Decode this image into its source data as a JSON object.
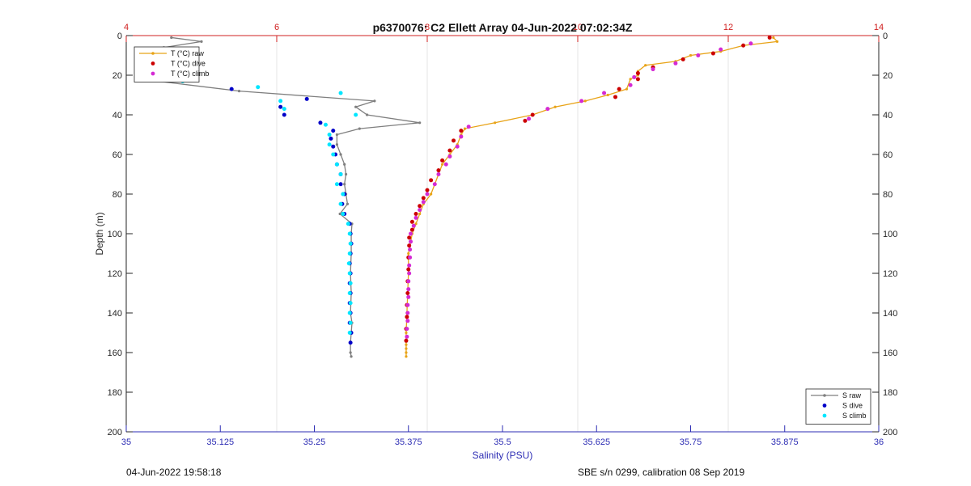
{
  "chart_data": {
    "type": "scatter",
    "title": "p6370076: C2 Ellett Array 04-Jun-2022 07:02:34Z",
    "xlabel": "Salinity (PSU)",
    "ylabel": "Depth (m)",
    "x_bottom": {
      "range": [
        35,
        36
      ],
      "ticks": [
        "35",
        "35.125",
        "35.25",
        "35.375",
        "35.5",
        "35.625",
        "35.75",
        "35.875",
        "36"
      ],
      "color": "#2d2db4"
    },
    "x_top": {
      "range": [
        4,
        14
      ],
      "ticks": [
        "4",
        "6",
        "8",
        "10",
        "12",
        "14"
      ],
      "color": "#d02020"
    },
    "y": {
      "range": [
        0,
        200
      ],
      "reversed": true,
      "ticks": [
        "0",
        "20",
        "40",
        "60",
        "80",
        "100",
        "120",
        "140",
        "160",
        "180",
        "200"
      ]
    },
    "grid": true,
    "legends": [
      {
        "placement": "top-left",
        "entries": [
          {
            "label": "T (°C) raw",
            "color": "#e8a317",
            "style": "line-marker"
          },
          {
            "label": "T (°C) dive",
            "color": "#cc0000",
            "style": "dot"
          },
          {
            "label": "T (°C) climb",
            "color": "#d42ad4",
            "style": "dot"
          }
        ]
      },
      {
        "placement": "bottom-right",
        "entries": [
          {
            "label": "S raw",
            "color": "#7f7f7f",
            "style": "line-marker"
          },
          {
            "label": "S dive",
            "color": "#0000c8",
            "style": "dot"
          },
          {
            "label": "S climb",
            "color": "#00e6ff",
            "style": "dot"
          }
        ]
      }
    ],
    "series": [
      {
        "name": "S raw",
        "axis": "salinity",
        "color": "#7f7f7f",
        "points": [
          [
            35.06,
            1
          ],
          [
            35.1,
            3
          ],
          [
            35.05,
            6
          ],
          [
            35.04,
            9
          ],
          [
            35.03,
            12
          ],
          [
            35.02,
            14
          ],
          [
            35.04,
            16
          ],
          [
            35.08,
            18
          ],
          [
            35.06,
            20
          ],
          [
            35.02,
            22
          ],
          [
            35.15,
            28
          ],
          [
            35.33,
            33
          ],
          [
            35.305,
            36
          ],
          [
            35.32,
            40
          ],
          [
            35.39,
            44
          ],
          [
            35.31,
            47
          ],
          [
            35.28,
            50
          ],
          [
            35.28,
            55
          ],
          [
            35.285,
            60
          ],
          [
            35.29,
            65
          ],
          [
            35.292,
            70
          ],
          [
            35.29,
            75
          ],
          [
            35.292,
            80
          ],
          [
            35.294,
            85
          ],
          [
            35.284,
            90
          ],
          [
            35.3,
            95
          ],
          [
            35.299,
            100
          ],
          [
            35.299,
            110
          ],
          [
            35.298,
            120
          ],
          [
            35.299,
            130
          ],
          [
            35.298,
            140
          ],
          [
            35.3,
            145
          ],
          [
            35.299,
            150
          ],
          [
            35.298,
            155
          ],
          [
            35.298,
            160
          ],
          [
            35.299,
            162
          ]
        ]
      },
      {
        "name": "S dive",
        "axis": "salinity",
        "color": "#0000c8",
        "points": [
          [
            35.05,
            8
          ],
          [
            35.03,
            13
          ],
          [
            35.04,
            18
          ],
          [
            35.03,
            22
          ],
          [
            35.14,
            27
          ],
          [
            35.24,
            32
          ],
          [
            35.205,
            36
          ],
          [
            35.21,
            40
          ],
          [
            35.258,
            44
          ],
          [
            35.275,
            48
          ],
          [
            35.272,
            52
          ],
          [
            35.275,
            56
          ],
          [
            35.278,
            60
          ],
          [
            35.28,
            65
          ],
          [
            35.285,
            70
          ],
          [
            35.285,
            75
          ],
          [
            35.29,
            80
          ],
          [
            35.287,
            85
          ],
          [
            35.29,
            90
          ],
          [
            35.297,
            95
          ],
          [
            35.298,
            100
          ],
          [
            35.299,
            105
          ],
          [
            35.298,
            110
          ],
          [
            35.297,
            115
          ],
          [
            35.298,
            120
          ],
          [
            35.297,
            125
          ],
          [
            35.298,
            130
          ],
          [
            35.297,
            135
          ],
          [
            35.298,
            140
          ],
          [
            35.297,
            145
          ],
          [
            35.299,
            150
          ],
          [
            35.298,
            155
          ]
        ]
      },
      {
        "name": "S climb",
        "axis": "salinity",
        "color": "#00e6ff",
        "points": [
          [
            35.03,
            11
          ],
          [
            35.04,
            15
          ],
          [
            35.06,
            19
          ],
          [
            35.075,
            23
          ],
          [
            35.175,
            26
          ],
          [
            35.285,
            29
          ],
          [
            35.205,
            33
          ],
          [
            35.21,
            37
          ],
          [
            35.305,
            40
          ],
          [
            35.265,
            45
          ],
          [
            35.27,
            50
          ],
          [
            35.27,
            55
          ],
          [
            35.275,
            60
          ],
          [
            35.28,
            65
          ],
          [
            35.285,
            70
          ],
          [
            35.28,
            75
          ],
          [
            35.288,
            80
          ],
          [
            35.285,
            85
          ],
          [
            35.288,
            90
          ],
          [
            35.295,
            95
          ],
          [
            35.297,
            100
          ],
          [
            35.298,
            105
          ],
          [
            35.297,
            110
          ],
          [
            35.296,
            115
          ],
          [
            35.297,
            120
          ],
          [
            35.298,
            125
          ],
          [
            35.297,
            130
          ],
          [
            35.298,
            135
          ],
          [
            35.297,
            140
          ],
          [
            35.298,
            145
          ],
          [
            35.297,
            150
          ]
        ]
      },
      {
        "name": "T (°C) raw",
        "axis": "temperature",
        "color": "#e8a317",
        "points": [
          [
            12.6,
            1
          ],
          [
            12.65,
            3
          ],
          [
            12.2,
            5
          ],
          [
            11.9,
            8
          ],
          [
            11.5,
            10
          ],
          [
            11.3,
            13
          ],
          [
            10.9,
            15
          ],
          [
            10.8,
            18
          ],
          [
            10.8,
            20
          ],
          [
            10.7,
            22
          ],
          [
            10.65,
            27
          ],
          [
            10.4,
            30
          ],
          [
            10.1,
            33
          ],
          [
            9.7,
            36
          ],
          [
            9.4,
            40
          ],
          [
            8.9,
            44
          ],
          [
            8.5,
            47
          ],
          [
            8.45,
            50
          ],
          [
            8.4,
            55
          ],
          [
            8.3,
            60
          ],
          [
            8.2,
            65
          ],
          [
            8.15,
            70
          ],
          [
            8.1,
            75
          ],
          [
            8.05,
            80
          ],
          [
            7.95,
            85
          ],
          [
            7.9,
            90
          ],
          [
            7.85,
            95
          ],
          [
            7.8,
            100
          ],
          [
            7.75,
            110
          ],
          [
            7.75,
            120
          ],
          [
            7.74,
            130
          ],
          [
            7.73,
            140
          ],
          [
            7.72,
            150
          ],
          [
            7.72,
            156
          ],
          [
            7.72,
            158
          ],
          [
            7.72,
            160
          ],
          [
            7.72,
            162
          ]
        ]
      },
      {
        "name": "T (°C) dive",
        "axis": "temperature",
        "color": "#cc0000",
        "points": [
          [
            12.55,
            1
          ],
          [
            12.2,
            5
          ],
          [
            11.8,
            9
          ],
          [
            11.4,
            12
          ],
          [
            11.0,
            16
          ],
          [
            10.8,
            19
          ],
          [
            10.8,
            22
          ],
          [
            10.55,
            27
          ],
          [
            10.5,
            31
          ],
          [
            9.4,
            40
          ],
          [
            9.3,
            43
          ],
          [
            8.45,
            48
          ],
          [
            8.35,
            53
          ],
          [
            8.3,
            58
          ],
          [
            8.2,
            63
          ],
          [
            8.15,
            68
          ],
          [
            8.05,
            73
          ],
          [
            8.0,
            78
          ],
          [
            7.95,
            82
          ],
          [
            7.9,
            86
          ],
          [
            7.85,
            90
          ],
          [
            7.8,
            94
          ],
          [
            7.8,
            98
          ],
          [
            7.76,
            102
          ],
          [
            7.76,
            106
          ],
          [
            7.75,
            112
          ],
          [
            7.75,
            118
          ],
          [
            7.74,
            124
          ],
          [
            7.74,
            130
          ],
          [
            7.73,
            136
          ],
          [
            7.73,
            142
          ],
          [
            7.72,
            148
          ],
          [
            7.72,
            154
          ]
        ]
      },
      {
        "name": "T (°C) climb",
        "axis": "temperature",
        "color": "#d42ad4",
        "points": [
          [
            12.3,
            4
          ],
          [
            11.9,
            7
          ],
          [
            11.6,
            10
          ],
          [
            11.3,
            14
          ],
          [
            11.0,
            17
          ],
          [
            10.75,
            21
          ],
          [
            10.7,
            25
          ],
          [
            10.35,
            29
          ],
          [
            10.05,
            33
          ],
          [
            9.6,
            37
          ],
          [
            9.35,
            42
          ],
          [
            8.55,
            46
          ],
          [
            8.45,
            51
          ],
          [
            8.4,
            56
          ],
          [
            8.3,
            61
          ],
          [
            8.25,
            65
          ],
          [
            8.15,
            70
          ],
          [
            8.1,
            75
          ],
          [
            8.0,
            80
          ],
          [
            7.95,
            84
          ],
          [
            7.9,
            88
          ],
          [
            7.85,
            92
          ],
          [
            7.82,
            96
          ],
          [
            7.78,
            100
          ],
          [
            7.78,
            104
          ],
          [
            7.77,
            108
          ],
          [
            7.77,
            112
          ],
          [
            7.76,
            116
          ],
          [
            7.76,
            120
          ],
          [
            7.75,
            124
          ],
          [
            7.75,
            128
          ],
          [
            7.75,
            132
          ],
          [
            7.74,
            136
          ],
          [
            7.74,
            140
          ],
          [
            7.74,
            144
          ],
          [
            7.73,
            148
          ],
          [
            7.73,
            152
          ]
        ]
      }
    ]
  },
  "footer": {
    "left": "04-Jun-2022 19:58:18",
    "right": "SBE s/n 0299, calibration 08 Sep 2019"
  }
}
